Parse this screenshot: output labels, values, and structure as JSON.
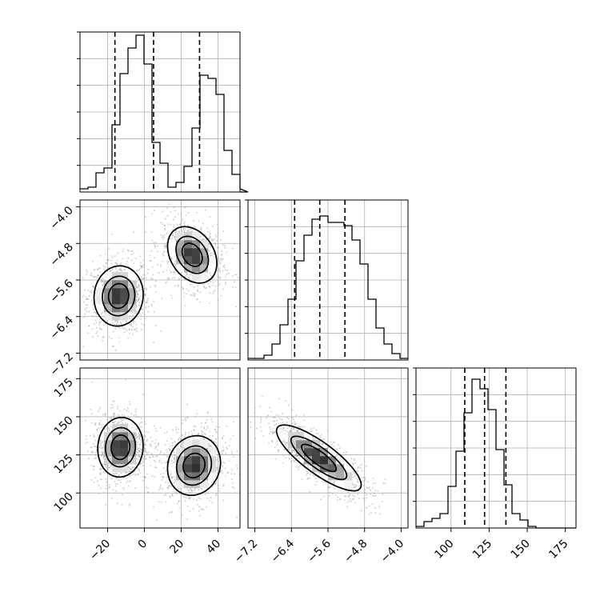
{
  "chart_data": {
    "type": "corner",
    "grid": true,
    "colors": {
      "hist": "#000000",
      "quantile": "#000000",
      "density": "#000000",
      "grid": "#b0b0b0",
      "points": "#9a9a9a"
    },
    "parameters": [
      {
        "key": "p0",
        "range": [
          -35,
          52
        ],
        "ticks": [
          -20,
          0,
          20,
          40
        ],
        "tick_labels": [
          "−20",
          "0",
          "20",
          "40"
        ],
        "quantiles": [
          -16,
          5,
          30
        ]
      },
      {
        "key": "p1",
        "range": [
          -7.35,
          -3.85
        ],
        "ticks": [
          -7.2,
          -6.4,
          -5.6,
          -4.8,
          -4.0
        ],
        "tick_labels": [
          "−7.2",
          "−6.4",
          "−5.6",
          "−4.8",
          "−4.0"
        ],
        "quantiles": [
          -6.33,
          -5.78,
          -5.23
        ]
      },
      {
        "key": "p2",
        "range": [
          77,
          182
        ],
        "ticks": [
          100,
          125,
          150,
          175
        ],
        "tick_labels": [
          "100",
          "125",
          "150",
          "175"
        ],
        "quantiles": [
          109,
          122,
          136
        ]
      }
    ],
    "histograms": [
      {
        "param": "p0",
        "bin_start": -35,
        "bin_width": 4.35,
        "counts": [
          0.02,
          0.03,
          0.12,
          0.15,
          0.42,
          0.74,
          0.9,
          0.98,
          0.8,
          0.31,
          0.18,
          0.03,
          0.06,
          0.16,
          0.4,
          0.73,
          0.71,
          0.61,
          0.26,
          0.11,
          0.02,
          0.0
        ]
      },
      {
        "param": "p1",
        "bin_start": -7.35,
        "bin_width": 0.175,
        "counts": [
          0.01,
          0.01,
          0.03,
          0.1,
          0.22,
          0.38,
          0.62,
          0.78,
          0.88,
          0.9,
          0.86,
          0.86,
          0.84,
          0.75,
          0.6,
          0.38,
          0.2,
          0.1,
          0.04,
          0.01
        ]
      },
      {
        "param": "p2",
        "bin_start": 77,
        "bin_width": 5.25,
        "counts": [
          0.01,
          0.04,
          0.06,
          0.09,
          0.26,
          0.48,
          0.72,
          0.93,
          0.87,
          0.74,
          0.49,
          0.27,
          0.09,
          0.05,
          0.01,
          0.0,
          0.0,
          0.0,
          0.0,
          0.0
        ]
      }
    ],
    "pairs": [
      {
        "x": "p0",
        "y": "p1",
        "clusters": [
          {
            "cx": -14,
            "cy": -5.95,
            "sx": 6.5,
            "sy": 0.32,
            "rho": 0.05
          },
          {
            "cx": 26,
            "cy": -5.05,
            "sx": 6.5,
            "sy": 0.3,
            "rho": -0.3
          }
        ]
      },
      {
        "x": "p0",
        "y": "p2",
        "clusters": [
          {
            "cx": -13,
            "cy": 130,
            "sx": 6.0,
            "sy": 9.5,
            "rho": 0.05
          },
          {
            "cx": 27,
            "cy": 118,
            "sx": 7.0,
            "sy": 9.5,
            "rho": 0.1
          }
        ]
      },
      {
        "x": "p1",
        "y": "p2",
        "clusters": [
          {
            "cx": -5.8,
            "cy": 123,
            "sx": 0.45,
            "sy": 10.5,
            "rho": -0.82
          }
        ]
      }
    ]
  }
}
